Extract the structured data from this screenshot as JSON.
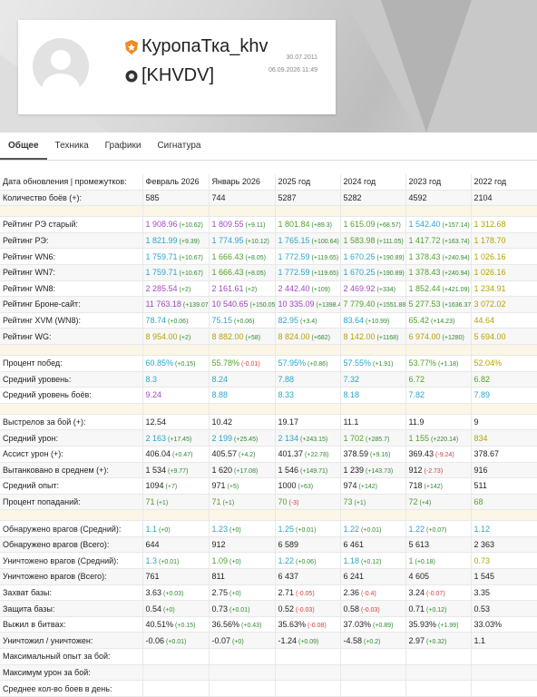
{
  "header": {
    "name": "КуропаТка_khv",
    "clan": "[KHVDV]",
    "registered": "30.07.2011",
    "updated": "06.09.2026 11:49"
  },
  "tabs": [
    "Общее",
    "Техника",
    "Графики",
    "Сигнатура"
  ],
  "table": {
    "header_label": "Дата обновления | промежутков:",
    "columns": [
      "Февраль 2026",
      "Январь 2026",
      "2025 год",
      "2024 год",
      "2023 год",
      "2022 год"
    ],
    "sections": [
      [
        {
          "label": "Количество боёв (+):",
          "cells": [
            {
              "v": "585"
            },
            {
              "v": "744"
            },
            {
              "v": "5287"
            },
            {
              "v": "5282"
            },
            {
              "v": "4592"
            },
            {
              "v": "2104"
            }
          ]
        }
      ],
      [
        {
          "label": "Рейтинг РЭ старый:",
          "cells": [
            {
              "v": "1 908.96",
              "d": "(+10.62)",
              "c": "p"
            },
            {
              "v": "1 809.55",
              "d": "(+9.11)",
              "c": "p"
            },
            {
              "v": "1 801.84",
              "d": "(+89.3)",
              "c": "g"
            },
            {
              "v": "1 615.09",
              "d": "(+68.57)",
              "c": "g"
            },
            {
              "v": "1 542.40",
              "d": "(+157.14)",
              "c": "b"
            },
            {
              "v": "1 312.68",
              "c": "y"
            }
          ]
        },
        {
          "label": "Рейтинг РЭ:",
          "cells": [
            {
              "v": "1 821.99",
              "d": "(+9.39)",
              "c": "b"
            },
            {
              "v": "1 774.95",
              "d": "(+10.12)",
              "c": "b"
            },
            {
              "v": "1 765.15",
              "d": "(+100.64)",
              "c": "b"
            },
            {
              "v": "1 583.98",
              "d": "(+111.05)",
              "c": "g"
            },
            {
              "v": "1 417.72",
              "d": "(+163.74)",
              "c": "g"
            },
            {
              "v": "1 178.70",
              "c": "y"
            }
          ]
        },
        {
          "label": "Рейтинг WN6:",
          "cells": [
            {
              "v": "1 759.71",
              "d": "(+10.67)",
              "c": "b"
            },
            {
              "v": "1 666.43",
              "d": "(+8.05)",
              "c": "g"
            },
            {
              "v": "1 772.59",
              "d": "(+119.65)",
              "c": "b"
            },
            {
              "v": "1 670.25",
              "d": "(+190.89)",
              "c": "b"
            },
            {
              "v": "1 378.43",
              "d": "(+240.94)",
              "c": "g"
            },
            {
              "v": "1 026.16",
              "c": "y"
            }
          ]
        },
        {
          "label": "Рейтинг WN7:",
          "cells": [
            {
              "v": "1 759.71",
              "d": "(+10.67)",
              "c": "b"
            },
            {
              "v": "1 666.43",
              "d": "(+8.05)",
              "c": "g"
            },
            {
              "v": "1 772.59",
              "d": "(+119.65)",
              "c": "b"
            },
            {
              "v": "1 670.25",
              "d": "(+190.89)",
              "c": "b"
            },
            {
              "v": "1 378.43",
              "d": "(+240.94)",
              "c": "g"
            },
            {
              "v": "1 026.16",
              "c": "y"
            }
          ]
        },
        {
          "label": "Рейтинг WN8:",
          "cells": [
            {
              "v": "2 285.54",
              "d": "(+2)",
              "c": "p"
            },
            {
              "v": "2 161.61",
              "d": "(+2)",
              "c": "p"
            },
            {
              "v": "2 442.40",
              "d": "(+109)",
              "c": "p"
            },
            {
              "v": "2 469.92",
              "d": "(+334)",
              "c": "p"
            },
            {
              "v": "1 852.44",
              "d": "(+421.09)",
              "c": "g"
            },
            {
              "v": "1 234.91",
              "c": "y"
            }
          ]
        },
        {
          "label": "Рейтинг Броне-сайт:",
          "cells": [
            {
              "v": "11 763.18",
              "d": "(+139.07)",
              "c": "p"
            },
            {
              "v": "10 540.65",
              "d": "(+150.05)",
              "c": "p"
            },
            {
              "v": "10 335.09",
              "d": "(+1398.41)",
              "c": "p"
            },
            {
              "v": "7 779.40",
              "d": "(+1551.88)",
              "c": "g"
            },
            {
              "v": "5 277.53",
              "d": "(+1636.37)",
              "c": "g"
            },
            {
              "v": "3 072.02",
              "c": "y"
            }
          ]
        },
        {
          "label": "Рейтинг XVM (WN8):",
          "cells": [
            {
              "v": "78.74",
              "d": "(+0.06)",
              "c": "b"
            },
            {
              "v": "75.15",
              "d": "(+0.06)",
              "c": "b"
            },
            {
              "v": "82.95",
              "d": "(+3.4)",
              "c": "b"
            },
            {
              "v": "83.64",
              "d": "(+10.99)",
              "c": "b"
            },
            {
              "v": "65.42",
              "d": "(+14.23)",
              "c": "g"
            },
            {
              "v": "44.64",
              "c": "y"
            }
          ]
        },
        {
          "label": "Рейтинг WG:",
          "cells": [
            {
              "v": "8 954.00",
              "d": "(+2)",
              "c": "y"
            },
            {
              "v": "8 882.00",
              "d": "(+58)",
              "c": "y"
            },
            {
              "v": "8 824.00",
              "d": "(+682)",
              "c": "y"
            },
            {
              "v": "8 142.00",
              "d": "(+1168)",
              "c": "y"
            },
            {
              "v": "6 974.00",
              "d": "(+1280)",
              "c": "y"
            },
            {
              "v": "5 694.00",
              "c": "y"
            }
          ]
        }
      ],
      [
        {
          "label": "Процент побед:",
          "cells": [
            {
              "v": "60.85%",
              "d": "(+0.15)",
              "c": "b"
            },
            {
              "v": "55.78%",
              "d": "(-0.01)",
              "c": "g"
            },
            {
              "v": "57.95%",
              "d": "(+0.86)",
              "c": "b"
            },
            {
              "v": "57.55%",
              "d": "(+1.91)",
              "c": "b"
            },
            {
              "v": "53.77%",
              "d": "(+1.18)",
              "c": "g"
            },
            {
              "v": "52.04%",
              "c": "y"
            }
          ]
        },
        {
          "label": "Средний уровень:",
          "cells": [
            {
              "v": "8.3",
              "c": "b"
            },
            {
              "v": "8.24",
              "c": "b"
            },
            {
              "v": "7.88",
              "c": "b"
            },
            {
              "v": "7.32",
              "c": "b"
            },
            {
              "v": "6.72",
              "c": "g"
            },
            {
              "v": "6.82",
              "c": "g"
            }
          ]
        },
        {
          "label": "Средний уровень боёв:",
          "cells": [
            {
              "v": "9.24",
              "c": "p"
            },
            {
              "v": "8.88",
              "c": "b"
            },
            {
              "v": "8.33",
              "c": "b"
            },
            {
              "v": "8.18",
              "c": "b"
            },
            {
              "v": "7.82",
              "c": "b"
            },
            {
              "v": "7.89",
              "c": "b"
            }
          ]
        }
      ],
      [
        {
          "label": "Выстрелов за бой (+):",
          "cells": [
            {
              "v": "12.54"
            },
            {
              "v": "10.42"
            },
            {
              "v": "19.17"
            },
            {
              "v": "11.1"
            },
            {
              "v": "11.9"
            },
            {
              "v": "9"
            }
          ]
        },
        {
          "label": "Средний урон:",
          "cells": [
            {
              "v": "2 163",
              "d": "(+17.45)",
              "c": "b"
            },
            {
              "v": "2 199",
              "d": "(+25.45)",
              "c": "b"
            },
            {
              "v": "2 134",
              "d": "(+243.15)",
              "c": "b"
            },
            {
              "v": "1 702",
              "d": "(+285.7)",
              "c": "g"
            },
            {
              "v": "1 155",
              "d": "(+220.14)",
              "c": "g"
            },
            {
              "v": "834",
              "c": "y"
            }
          ]
        },
        {
          "label": "Ассист урон (+):",
          "cells": [
            {
              "v": "406.04",
              "d": "(+0.47)"
            },
            {
              "v": "405.57",
              "d": "(+4.2)"
            },
            {
              "v": "401.37",
              "d": "(+22.78)"
            },
            {
              "v": "378.59",
              "d": "(+9.16)"
            },
            {
              "v": "369.43",
              "d": "(-9.24)"
            },
            {
              "v": "378.67"
            }
          ]
        },
        {
          "label": "Вытанковано в среднем (+):",
          "cells": [
            {
              "v": "1 534",
              "d": "(+9.77)"
            },
            {
              "v": "1 620",
              "d": "(+17.08)"
            },
            {
              "v": "1 546",
              "d": "(+149.71)"
            },
            {
              "v": "1 239",
              "d": "(+143.73)"
            },
            {
              "v": "912",
              "d": "(-2.73)"
            },
            {
              "v": "916"
            }
          ]
        },
        {
          "label": "Средний опыт:",
          "cells": [
            {
              "v": "1094",
              "d": "(+7)"
            },
            {
              "v": "971",
              "d": "(+5)"
            },
            {
              "v": "1000",
              "d": "(+63)"
            },
            {
              "v": "974",
              "d": "(+142)"
            },
            {
              "v": "718",
              "d": "(+142)"
            },
            {
              "v": "511"
            }
          ]
        },
        {
          "label": "Процент попаданий:",
          "cells": [
            {
              "v": "71",
              "d": "(+1)",
              "c": "g"
            },
            {
              "v": "71",
              "d": "(+1)",
              "c": "g"
            },
            {
              "v": "70",
              "d": "(-3)",
              "c": "g"
            },
            {
              "v": "73",
              "d": "(+1)",
              "c": "g"
            },
            {
              "v": "72",
              "d": "(+4)",
              "c": "g"
            },
            {
              "v": "68",
              "c": "g"
            }
          ]
        }
      ],
      [
        {
          "label": "Обнаружено врагов (Средний):",
          "cells": [
            {
              "v": "1.1",
              "d": "(+0)",
              "c": "b"
            },
            {
              "v": "1.23",
              "d": "(+0)",
              "c": "b"
            },
            {
              "v": "1.25",
              "d": "(+0.01)",
              "c": "b"
            },
            {
              "v": "1.22",
              "d": "(+0.01)",
              "c": "b"
            },
            {
              "v": "1.22",
              "d": "(+0.07)",
              "c": "b"
            },
            {
              "v": "1.12",
              "c": "b"
            }
          ]
        },
        {
          "label": "Обнаружено врагов (Всего):",
          "cells": [
            {
              "v": "644"
            },
            {
              "v": "912"
            },
            {
              "v": "6 589"
            },
            {
              "v": "6 461"
            },
            {
              "v": "5 613"
            },
            {
              "v": "2 363"
            }
          ]
        },
        {
          "label": "Уничтожено врагов (Средний):",
          "cells": [
            {
              "v": "1.3",
              "d": "(+0.01)",
              "c": "b"
            },
            {
              "v": "1.09",
              "d": "(+0)",
              "c": "g"
            },
            {
              "v": "1.22",
              "d": "(+0.06)",
              "c": "b"
            },
            {
              "v": "1.18",
              "d": "(+0.12)",
              "c": "b"
            },
            {
              "v": "1",
              "d": "(+0.18)",
              "c": "g"
            },
            {
              "v": "0.73",
              "c": "y"
            }
          ]
        },
        {
          "label": "Уничтожено врагов (Всего):",
          "cells": [
            {
              "v": "761"
            },
            {
              "v": "811"
            },
            {
              "v": "6 437"
            },
            {
              "v": "6 241"
            },
            {
              "v": "4 605"
            },
            {
              "v": "1 545"
            }
          ]
        },
        {
          "label": "Захват базы:",
          "cells": [
            {
              "v": "3.63",
              "d": "(+0.03)"
            },
            {
              "v": "2.75",
              "d": "(+0)"
            },
            {
              "v": "2.71",
              "d": "(-0.05)"
            },
            {
              "v": "2.36",
              "d": "(-0.4)"
            },
            {
              "v": "3.24",
              "d": "(-0.07)"
            },
            {
              "v": "3.35"
            }
          ]
        },
        {
          "label": "Защита базы:",
          "cells": [
            {
              "v": "0.54",
              "d": "(+0)"
            },
            {
              "v": "0.73",
              "d": "(+0.01)"
            },
            {
              "v": "0.52",
              "d": "(-0.03)"
            },
            {
              "v": "0.58",
              "d": "(-0.03)"
            },
            {
              "v": "0.71",
              "d": "(+0.12)"
            },
            {
              "v": "0.53"
            }
          ]
        },
        {
          "label": "Выжил в битвах:",
          "cells": [
            {
              "v": "40.51%",
              "d": "(+0.15)"
            },
            {
              "v": "36.56%",
              "d": "(+0.43)"
            },
            {
              "v": "35.63%",
              "d": "(-0.08)"
            },
            {
              "v": "37.03%",
              "d": "(+0.89)"
            },
            {
              "v": "35.93%",
              "d": "(+1.99)"
            },
            {
              "v": "33.03%"
            }
          ]
        },
        {
          "label": "Уничтожил / уничтожен:",
          "cells": [
            {
              "v": "-0.06",
              "d": "(+0.01)"
            },
            {
              "v": "-0.07",
              "d": "(+0)"
            },
            {
              "v": "-1.24",
              "d": "(+0.09)"
            },
            {
              "v": "-4.58",
              "d": "(+0.2)"
            },
            {
              "v": "2.97",
              "d": "(+0.32)"
            },
            {
              "v": "1.1"
            }
          ]
        },
        {
          "label": "Максимальный опыт за бой:",
          "cells": []
        },
        {
          "label": "Максимум урон за бой:",
          "cells": []
        },
        {
          "label": "Среднее кол-во боев в день:",
          "cells": []
        }
      ]
    ]
  },
  "colors": {
    "p": "#a24ac4",
    "b": "#2ba6c8",
    "g": "#55a12a",
    "y": "#b5a300",
    "up": "#2f8a2f",
    "down": "#d23a3a"
  }
}
